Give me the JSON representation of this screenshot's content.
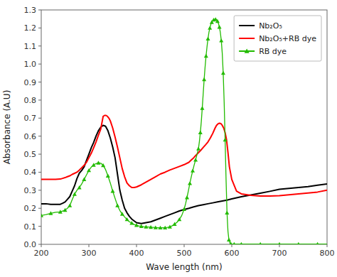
{
  "chart_data": {
    "type": "line",
    "x_label": "Wave length (nm)",
    "y_label": "Absorbance (A.U)",
    "xlim": [
      200,
      800
    ],
    "ylim": [
      0.0,
      1.3
    ],
    "xticks": [
      200,
      300,
      400,
      500,
      600,
      700,
      800
    ],
    "yticks": [
      {
        "value": 0,
        "label": "0.0"
      },
      0.1,
      0.2,
      0.3,
      0.4,
      0.5,
      0.6,
      0.7,
      0.8,
      0.9,
      {
        "value": 1,
        "label": "1.0"
      },
      1.1,
      1.2,
      1.3
    ],
    "grid": false,
    "legend": "upper-right",
    "series": [
      {
        "name": "Nb₂O₅",
        "color": "black",
        "x": [
          200,
          210,
          220,
          230,
          240,
          245,
          250,
          255,
          260,
          265,
          270,
          275,
          280,
          285,
          290,
          295,
          300,
          305,
          310,
          315,
          320,
          325,
          330,
          335,
          340,
          345,
          350,
          355,
          360,
          365,
          370,
          375,
          380,
          385,
          390,
          395,
          400,
          410,
          420,
          430,
          440,
          450,
          460,
          470,
          480,
          490,
          500,
          510,
          520,
          530,
          540,
          550,
          560,
          570,
          580,
          590,
          600,
          620,
          640,
          660,
          680,
          700,
          720,
          740,
          760,
          780,
          800
        ],
        "values": [
          0.225,
          0.225,
          0.222,
          0.222,
          0.222,
          0.228,
          0.235,
          0.25,
          0.265,
          0.295,
          0.325,
          0.365,
          0.395,
          0.41,
          0.43,
          0.465,
          0.5,
          0.535,
          0.565,
          0.6,
          0.63,
          0.65,
          0.66,
          0.655,
          0.63,
          0.59,
          0.54,
          0.48,
          0.39,
          0.3,
          0.245,
          0.2,
          0.175,
          0.155,
          0.14,
          0.13,
          0.12,
          0.115,
          0.12,
          0.125,
          0.135,
          0.145,
          0.155,
          0.165,
          0.175,
          0.185,
          0.193,
          0.2,
          0.208,
          0.215,
          0.22,
          0.225,
          0.23,
          0.235,
          0.24,
          0.245,
          0.252,
          0.264,
          0.274,
          0.284,
          0.294,
          0.305,
          0.31,
          0.315,
          0.32,
          0.328,
          0.335
        ]
      },
      {
        "name": "Nb₂O₅+RB dye",
        "color": "red",
        "x": [
          200,
          210,
          220,
          230,
          240,
          245,
          250,
          255,
          260,
          265,
          270,
          275,
          280,
          285,
          290,
          295,
          300,
          305,
          310,
          315,
          320,
          325,
          330,
          333,
          336,
          339,
          342,
          345,
          350,
          355,
          360,
          365,
          370,
          375,
          380,
          385,
          390,
          395,
          400,
          410,
          420,
          430,
          440,
          450,
          460,
          470,
          480,
          490,
          500,
          510,
          515,
          520,
          525,
          530,
          535,
          540,
          545,
          550,
          555,
          560,
          565,
          568,
          571,
          574,
          577,
          580,
          583,
          586,
          589,
          592,
          595,
          600,
          610,
          620,
          640,
          660,
          680,
          700,
          720,
          740,
          760,
          780,
          800
        ],
        "values": [
          0.36,
          0.36,
          0.36,
          0.36,
          0.362,
          0.366,
          0.37,
          0.375,
          0.38,
          0.388,
          0.394,
          0.4,
          0.412,
          0.425,
          0.438,
          0.455,
          0.48,
          0.505,
          0.535,
          0.568,
          0.605,
          0.64,
          0.71,
          0.715,
          0.715,
          0.71,
          0.7,
          0.685,
          0.645,
          0.595,
          0.54,
          0.48,
          0.42,
          0.375,
          0.34,
          0.325,
          0.315,
          0.315,
          0.318,
          0.33,
          0.345,
          0.36,
          0.375,
          0.39,
          0.4,
          0.412,
          0.422,
          0.432,
          0.442,
          0.455,
          0.468,
          0.48,
          0.495,
          0.508,
          0.522,
          0.537,
          0.552,
          0.568,
          0.59,
          0.615,
          0.645,
          0.66,
          0.668,
          0.672,
          0.67,
          0.66,
          0.645,
          0.62,
          0.58,
          0.51,
          0.43,
          0.36,
          0.295,
          0.28,
          0.272,
          0.268,
          0.268,
          0.27,
          0.275,
          0.28,
          0.285,
          0.29,
          0.3
        ]
      },
      {
        "name": "RB dye",
        "color": "#22bb00",
        "marker": "triangle",
        "x": [
          200,
          210,
          220,
          230,
          240,
          245,
          250,
          255,
          260,
          265,
          270,
          275,
          280,
          285,
          290,
          295,
          300,
          305,
          310,
          315,
          320,
          325,
          330,
          335,
          340,
          345,
          350,
          355,
          360,
          365,
          370,
          375,
          380,
          385,
          390,
          395,
          400,
          405,
          410,
          415,
          420,
          425,
          430,
          435,
          440,
          445,
          450,
          455,
          460,
          465,
          470,
          475,
          480,
          485,
          490,
          495,
          500,
          503,
          506,
          509,
          512,
          515,
          518,
          521,
          524,
          527,
          530,
          532,
          534,
          536,
          538,
          540,
          542,
          544,
          546,
          548,
          550,
          552,
          554,
          556,
          558,
          560,
          562,
          564,
          566,
          568,
          570,
          572,
          574,
          576,
          578,
          580,
          582,
          584,
          586,
          588,
          590,
          592,
          594,
          596,
          598,
          600,
          605,
          610,
          620,
          640,
          660,
          680,
          700,
          720,
          740,
          760,
          780,
          800
        ],
        "values": [
          0.16,
          0.165,
          0.172,
          0.178,
          0.18,
          0.185,
          0.19,
          0.2,
          0.215,
          0.248,
          0.278,
          0.3,
          0.315,
          0.335,
          0.36,
          0.385,
          0.41,
          0.428,
          0.44,
          0.448,
          0.452,
          0.45,
          0.438,
          0.415,
          0.38,
          0.34,
          0.295,
          0.255,
          0.215,
          0.188,
          0.168,
          0.152,
          0.138,
          0.125,
          0.118,
          0.11,
          0.106,
          0.102,
          0.1,
          0.098,
          0.097,
          0.096,
          0.095,
          0.094,
          0.093,
          0.092,
          0.092,
          0.092,
          0.092,
          0.094,
          0.097,
          0.103,
          0.112,
          0.122,
          0.138,
          0.16,
          0.195,
          0.225,
          0.26,
          0.298,
          0.338,
          0.375,
          0.408,
          0.44,
          0.468,
          0.498,
          0.53,
          0.57,
          0.62,
          0.68,
          0.755,
          0.835,
          0.915,
          0.985,
          1.045,
          1.095,
          1.14,
          1.175,
          1.2,
          1.22,
          1.232,
          1.24,
          1.245,
          1.248,
          1.248,
          1.245,
          1.238,
          1.225,
          1.205,
          1.175,
          1.13,
          1.06,
          0.95,
          0.79,
          0.58,
          0.36,
          0.175,
          0.072,
          0.025,
          0.008,
          0.003,
          0.001,
          0.001,
          0.001,
          0.001,
          0.001,
          0.001,
          0.001,
          0.001,
          0.001,
          0.001,
          0.001,
          0.001,
          0.001
        ]
      }
    ]
  }
}
